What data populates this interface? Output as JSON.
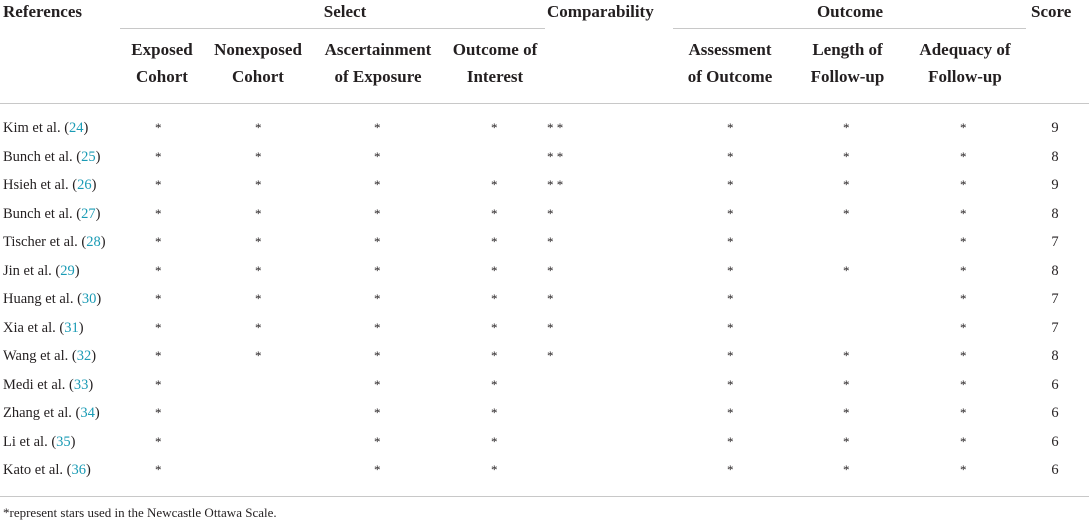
{
  "headers": {
    "references": "References",
    "select": "Select",
    "comparability": "Comparability",
    "outcome": "Outcome",
    "score": "Score",
    "exposed_cohort": [
      "Exposed",
      "Cohort"
    ],
    "nonexposed_cohort": [
      "Nonexposed",
      "Cohort"
    ],
    "ascertainment": [
      "Ascertainment",
      "of Exposure"
    ],
    "outcome_of_interest": [
      "Outcome of",
      "Interest"
    ],
    "assessment": [
      "Assessment",
      "of Outcome"
    ],
    "length": [
      "Length of",
      "Follow-up"
    ],
    "adequacy": [
      "Adequacy of",
      "Follow-up"
    ]
  },
  "rows": [
    {
      "ref": "Kim et al. (",
      "num": "24",
      "close": ")",
      "exposed": "*",
      "nonexposed": "*",
      "ascertainment": "*",
      "interest": "*",
      "comparability": "* *",
      "assessment": "*",
      "length": "*",
      "adequacy": "*",
      "score": "9"
    },
    {
      "ref": "Bunch et al. (",
      "num": "25",
      "close": ")",
      "exposed": "*",
      "nonexposed": "*",
      "ascertainment": "*",
      "interest": "",
      "comparability": "* *",
      "assessment": "*",
      "length": "*",
      "adequacy": "*",
      "score": "8"
    },
    {
      "ref": "Hsieh et al. (",
      "num": "26",
      "close": ")",
      "exposed": "*",
      "nonexposed": "*",
      "ascertainment": "*",
      "interest": "*",
      "comparability": "* *",
      "assessment": "*",
      "length": "*",
      "adequacy": "*",
      "score": "9"
    },
    {
      "ref": "Bunch et al. (",
      "num": "27",
      "close": ")",
      "exposed": "*",
      "nonexposed": "*",
      "ascertainment": "*",
      "interest": "*",
      "comparability": "*",
      "assessment": "*",
      "length": "*",
      "adequacy": "*",
      "score": "8"
    },
    {
      "ref": "Tischer et al. (",
      "num": "28",
      "close": ")",
      "exposed": "*",
      "nonexposed": "*",
      "ascertainment": "*",
      "interest": "*",
      "comparability": "*",
      "assessment": "*",
      "length": "",
      "adequacy": "*",
      "score": "7"
    },
    {
      "ref": "Jin et al. (",
      "num": "29",
      "close": ")",
      "exposed": "*",
      "nonexposed": "*",
      "ascertainment": "*",
      "interest": "*",
      "comparability": "*",
      "assessment": "*",
      "length": "*",
      "adequacy": "*",
      "score": "8"
    },
    {
      "ref": "Huang et al. (",
      "num": "30",
      "close": ")",
      "exposed": "*",
      "nonexposed": "*",
      "ascertainment": "*",
      "interest": "*",
      "comparability": "*",
      "assessment": "*",
      "length": "",
      "adequacy": "*",
      "score": "7"
    },
    {
      "ref": "Xia et al. (",
      "num": "31",
      "close": ")",
      "exposed": "*",
      "nonexposed": "*",
      "ascertainment": "*",
      "interest": "*",
      "comparability": "*",
      "assessment": "*",
      "length": "",
      "adequacy": "*",
      "score": "7"
    },
    {
      "ref": "Wang et al. (",
      "num": "32",
      "close": ")",
      "exposed": "*",
      "nonexposed": "*",
      "ascertainment": "*",
      "interest": "*",
      "comparability": "*",
      "assessment": "*",
      "length": "*",
      "adequacy": "*",
      "score": "8"
    },
    {
      "ref": "Medi et al. (",
      "num": "33",
      "close": ")",
      "exposed": "*",
      "nonexposed": "",
      "ascertainment": "*",
      "interest": "*",
      "comparability": "",
      "assessment": "*",
      "length": "*",
      "adequacy": "*",
      "score": "6"
    },
    {
      "ref": "Zhang et al. (",
      "num": "34",
      "close": ")",
      "exposed": "*",
      "nonexposed": "",
      "ascertainment": "*",
      "interest": "*",
      "comparability": "",
      "assessment": "*",
      "length": "*",
      "adequacy": "*",
      "score": "6"
    },
    {
      "ref": "Li et al. (",
      "num": "35",
      "close": ")",
      "exposed": "*",
      "nonexposed": "",
      "ascertainment": "*",
      "interest": "*",
      "comparability": "",
      "assessment": "*",
      "length": "*",
      "adequacy": "*",
      "score": "6"
    },
    {
      "ref": "Kato et al. (",
      "num": "36",
      "close": ")",
      "exposed": "*",
      "nonexposed": "",
      "ascertainment": "*",
      "interest": "*",
      "comparability": "",
      "assessment": "*",
      "length": "*",
      "adequacy": "*",
      "score": "6"
    }
  ],
  "footnote": "*represent stars used in the Newcastle Ottawa Scale."
}
